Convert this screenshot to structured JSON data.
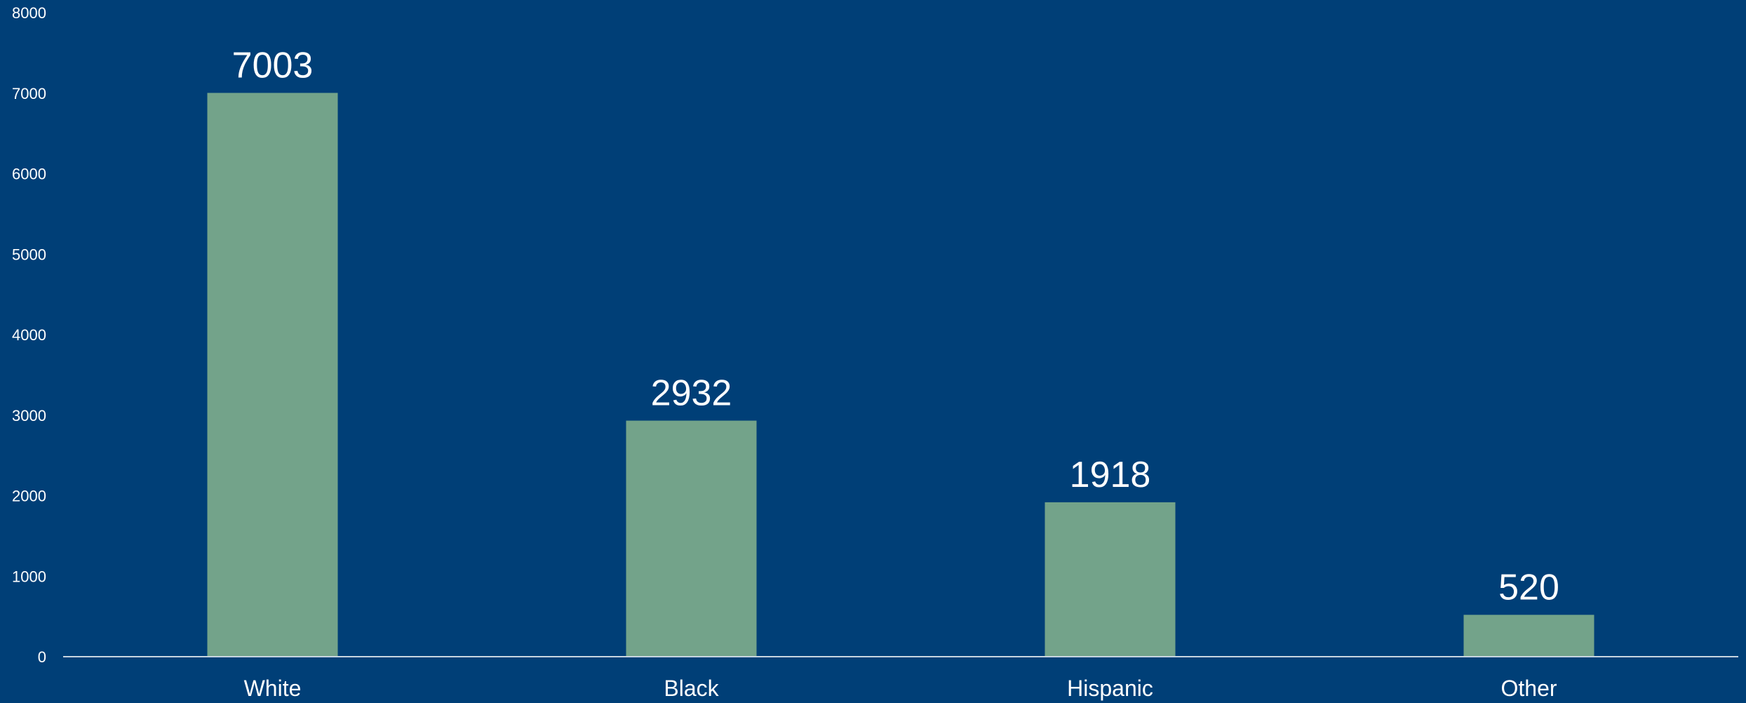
{
  "chart_data": {
    "type": "bar",
    "categories": [
      "White",
      "Black",
      "Hispanic",
      "Other"
    ],
    "values": [
      7003,
      2932,
      1918,
      520
    ],
    "data_labels": [
      "7003",
      "2932",
      "1918",
      "520"
    ],
    "title": "",
    "xlabel": "",
    "ylabel": "",
    "ylim": [
      0,
      8000
    ],
    "yticks": [
      0,
      1000,
      2000,
      3000,
      4000,
      5000,
      6000,
      7000,
      8000
    ],
    "ytick_labels": [
      "0",
      "1000",
      "2000",
      "3000",
      "4000",
      "5000",
      "6000",
      "7000",
      "8000"
    ],
    "grid": false,
    "legend": "none"
  },
  "colors": {
    "background": "#003f77",
    "bar": "#73a38a",
    "axis": "#c8d4e0",
    "text": "#ffffff"
  }
}
